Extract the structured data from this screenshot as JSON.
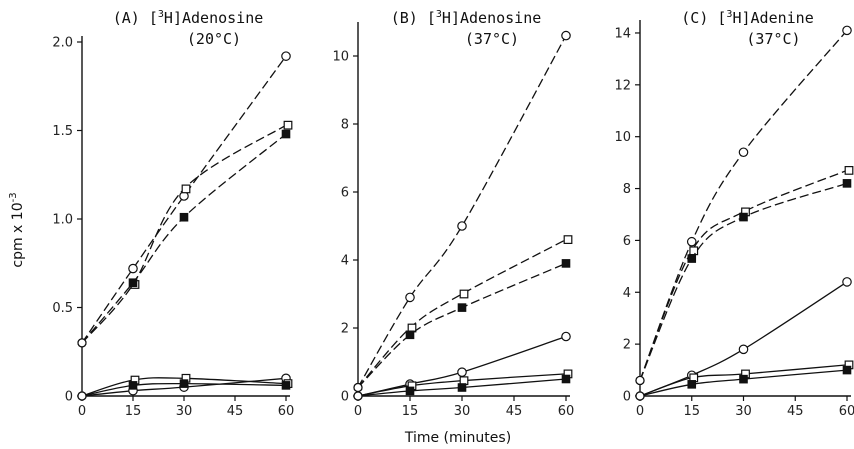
{
  "ylabel": "cpm x 10",
  "ylabel_exp": "-3",
  "xlabel": "Time (minutes)",
  "chart_data": [
    {
      "type": "line",
      "panel": "(A)",
      "title_pre": "(A) [",
      "title_sup": "3",
      "title_post": "H]Adenosine",
      "subtitle": "(20°C)",
      "x_ticks": [
        "0",
        "15",
        "30",
        "45",
        "60"
      ],
      "y_ticks": [
        "0",
        "0.5",
        "1.0",
        "1.5",
        "2.0"
      ],
      "xlim": [
        0,
        60
      ],
      "ylim": [
        0,
        2.0
      ],
      "ytick_values": [
        0,
        0.5,
        1.0,
        1.5,
        2.0
      ],
      "series": [
        {
          "marker": "open-circle",
          "style": "dashed",
          "x": [
            0,
            15,
            30,
            60
          ],
          "y": [
            0.3,
            0.72,
            1.13,
            1.92
          ]
        },
        {
          "marker": "open-square",
          "style": "dashed",
          "x": [
            0,
            15,
            30,
            60
          ],
          "y": [
            0.3,
            0.63,
            1.17,
            1.53
          ]
        },
        {
          "marker": "filled-square",
          "style": "dashed",
          "x": [
            0,
            15,
            30,
            60
          ],
          "y": [
            0.3,
            0.64,
            1.01,
            1.48
          ]
        },
        {
          "marker": "open-circle",
          "style": "solid",
          "x": [
            0,
            15,
            30,
            60
          ],
          "y": [
            0,
            0.03,
            0.05,
            0.1
          ]
        },
        {
          "marker": "open-square",
          "style": "solid",
          "x": [
            0,
            15,
            30,
            60
          ],
          "y": [
            0,
            0.09,
            0.1,
            0.07
          ]
        },
        {
          "marker": "filled-square",
          "style": "solid",
          "x": [
            0,
            15,
            30,
            60
          ],
          "y": [
            0,
            0.06,
            0.07,
            0.06
          ]
        }
      ]
    },
    {
      "type": "line",
      "panel": "(B)",
      "title_pre": "(B) [",
      "title_sup": "3",
      "title_post": "H]Adenosine",
      "subtitle": "(37°C)",
      "x_ticks": [
        "0",
        "15",
        "30",
        "45",
        "60"
      ],
      "y_ticks": [
        "0",
        "2",
        "4",
        "6",
        "8",
        "10"
      ],
      "xlim": [
        0,
        60
      ],
      "ylim": [
        0,
        11
      ],
      "ytick_values": [
        0,
        2,
        4,
        6,
        8,
        10
      ],
      "series": [
        {
          "marker": "open-circle",
          "style": "dashed",
          "x": [
            0,
            15,
            30,
            60
          ],
          "y": [
            0.25,
            2.9,
            5.0,
            10.6
          ]
        },
        {
          "marker": "open-square",
          "style": "dashed",
          "x": [
            0,
            15,
            30,
            60
          ],
          "y": [
            0.25,
            2.0,
            3.0,
            4.6
          ]
        },
        {
          "marker": "filled-square",
          "style": "dashed",
          "x": [
            0,
            15,
            30,
            60
          ],
          "y": [
            0.25,
            1.8,
            2.6,
            3.9
          ]
        },
        {
          "marker": "open-circle",
          "style": "solid",
          "x": [
            0,
            15,
            30,
            60
          ],
          "y": [
            0,
            0.35,
            0.7,
            1.75
          ]
        },
        {
          "marker": "open-square",
          "style": "solid",
          "x": [
            0,
            15,
            30,
            60
          ],
          "y": [
            0,
            0.3,
            0.45,
            0.65
          ]
        },
        {
          "marker": "filled-square",
          "style": "solid",
          "x": [
            0,
            15,
            30,
            60
          ],
          "y": [
            0,
            0.15,
            0.25,
            0.5
          ]
        }
      ]
    },
    {
      "type": "line",
      "panel": "(C)",
      "title_pre": "(C) [",
      "title_sup": "3",
      "title_post": "H]Adenine",
      "subtitle": "(37°C)",
      "x_ticks": [
        "0",
        "15",
        "30",
        "45",
        "60"
      ],
      "y_ticks": [
        "0",
        "2",
        "4",
        "6",
        "8",
        "10",
        "12",
        "14"
      ],
      "xlim": [
        0,
        60
      ],
      "ylim": [
        0,
        14.5
      ],
      "ytick_values": [
        0,
        2,
        4,
        6,
        8,
        10,
        12,
        14
      ],
      "series": [
        {
          "marker": "open-circle",
          "style": "dashed",
          "x": [
            0,
            15,
            30,
            60
          ],
          "y": [
            0.6,
            5.95,
            9.4,
            14.1
          ]
        },
        {
          "marker": "open-square",
          "style": "dashed",
          "x": [
            0,
            15,
            30,
            60
          ],
          "y": [
            0.6,
            5.6,
            7.1,
            8.7
          ]
        },
        {
          "marker": "filled-square",
          "style": "dashed",
          "x": [
            0,
            15,
            30,
            60
          ],
          "y": [
            0.6,
            5.3,
            6.9,
            8.2
          ]
        },
        {
          "marker": "open-circle",
          "style": "solid",
          "x": [
            0,
            15,
            30,
            60
          ],
          "y": [
            0,
            0.8,
            1.8,
            4.4
          ]
        },
        {
          "marker": "open-square",
          "style": "solid",
          "x": [
            0,
            15,
            30,
            60
          ],
          "y": [
            0,
            0.7,
            0.85,
            1.2
          ]
        },
        {
          "marker": "filled-square",
          "style": "solid",
          "x": [
            0,
            15,
            30,
            60
          ],
          "y": [
            0,
            0.45,
            0.65,
            1.0
          ]
        }
      ]
    }
  ]
}
